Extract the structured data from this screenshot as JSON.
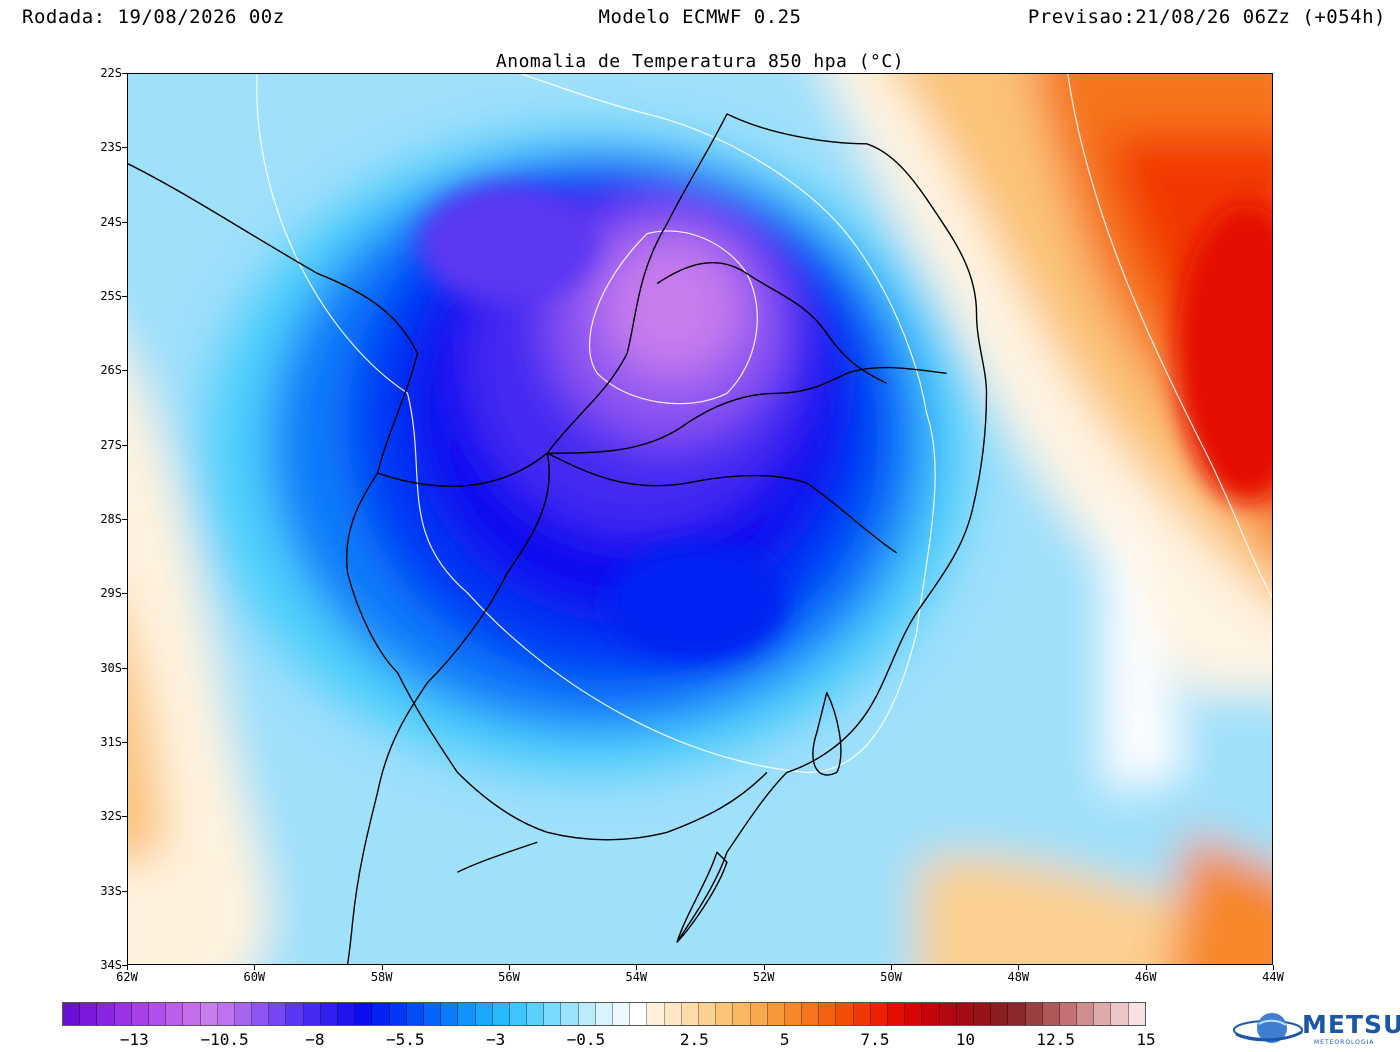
{
  "header": {
    "run_label": "Rodada: 19/08/2026 00z",
    "model_label": "Modelo ECMWF 0.25",
    "forecast_label": "Previsao:21/08/26 06Zz (+054h)"
  },
  "map": {
    "title": "Anomalia de Temperatura 850 hpa (°C)",
    "lat_labels": [
      "22S",
      "23S",
      "24S",
      "25S",
      "26S",
      "27S",
      "28S",
      "29S",
      "30S",
      "31S",
      "32S",
      "33S",
      "34S"
    ],
    "lon_labels": [
      "62W",
      "60W",
      "58W",
      "56W",
      "54W",
      "52W",
      "50W",
      "48W",
      "46W",
      "44W"
    ],
    "lat_range": [
      -34,
      -22
    ],
    "lon_range": [
      -62,
      -44
    ],
    "field": "temperature anomaly at 850 hPa",
    "cold_core": {
      "lat": -25.2,
      "lon": -53.0,
      "min_anomaly": -11.5
    },
    "warm_core": {
      "lat": -26.0,
      "lon": -44.5,
      "max_anomaly": 11.0
    },
    "regions": [
      "coastline",
      "country borders",
      "state borders",
      "lakes"
    ]
  },
  "colorbar": {
    "labels": [
      "−13",
      "−10.5",
      "−8",
      "−5.5",
      "−3",
      "−0.5",
      "2.5",
      "5",
      "7.5",
      "10",
      "12.5",
      "15"
    ],
    "label_values": [
      -13,
      -10.5,
      -8,
      -5.5,
      -3,
      -0.5,
      2.5,
      5,
      7.5,
      10,
      12.5,
      15
    ],
    "range": [
      -15,
      15
    ],
    "colors": [
      "#6a0fd6",
      "#7a19dc",
      "#8a25e1",
      "#9a33e5",
      "#a840e8",
      "#b24fea",
      "#bb5eea",
      "#c36deb",
      "#c77dec",
      "#bd72ee",
      "#a664f0",
      "#8e55f2",
      "#7546f4",
      "#5c37f3",
      "#452af1",
      "#311ef0",
      "#1f14ef",
      "#0d0ef0",
      "#0022f2",
      "#0038f5",
      "#004ef7",
      "#0565f8",
      "#0b7cf9",
      "#1293fa",
      "#1aa8fb",
      "#27b9fb",
      "#3dc6fb",
      "#59d1fb",
      "#7adafb",
      "#9be3fc",
      "#bbecfd",
      "#d8f4fe",
      "#ecf9ff",
      "#ffffff",
      "#fdf1dc",
      "#fde7c4",
      "#fddcaa",
      "#fcd090",
      "#fbc378",
      "#fab663",
      "#f9a74e",
      "#f8983b",
      "#f7872a",
      "#f6751c",
      "#f5620f",
      "#f34d07",
      "#f13704",
      "#ee2102",
      "#e50c02",
      "#d70506",
      "#c6040b",
      "#b4070f",
      "#a40c14",
      "#961418",
      "#8a1e20",
      "#8a2a2c",
      "#9a4040",
      "#ae5858",
      "#c27272",
      "#d18e8e",
      "#dfaaaa",
      "#ecc6c6",
      "#f6e2e2"
    ]
  },
  "logo": {
    "name": "METSUL",
    "subtitle": "METEOROLOGIA"
  }
}
